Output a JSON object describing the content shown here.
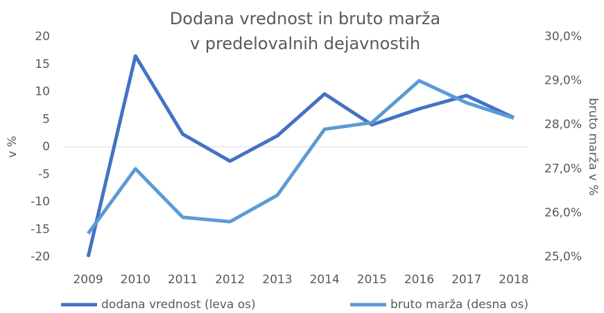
{
  "chart_data": {
    "type": "line",
    "title": "Dodana vrednost in bruto marža v predelovalnih dejavnostih",
    "y_label": "v %",
    "y2_label": "bruto marža v %",
    "categories": [
      "2009",
      "2010",
      "2011",
      "2012",
      "2013",
      "2014",
      "2015",
      "2016",
      "2017",
      "2018"
    ],
    "series": [
      {
        "name": "dodana vrednost (leva os)",
        "color": "#4472c4",
        "values": [
          -20,
          16.5,
          2.3,
          -2.6,
          2.0,
          9.6,
          4.0,
          6.9,
          9.3,
          5.3
        ]
      },
      {
        "name": "bruto marža (desna os)",
        "color": "#5b9bd5",
        "axis": "y2",
        "values": [
          25.53,
          27.0,
          25.9,
          25.8,
          26.4,
          27.9,
          28.05,
          29.0,
          28.5,
          28.15
        ]
      }
    ],
    "ylim": [
      -20,
      20
    ],
    "yticks": [
      -20,
      -15,
      -10,
      -5,
      0,
      5,
      10,
      15,
      20
    ],
    "y2lim": [
      25,
      30
    ],
    "y2ticks": [
      {
        "value": 25,
        "label": "25,0%"
      },
      {
        "value": 26,
        "label": "26,0%"
      },
      {
        "value": 27,
        "label": "27,0%"
      },
      {
        "value": 28,
        "label": "28,0%"
      },
      {
        "value": 29,
        "label": "29,0%"
      },
      {
        "value": 30,
        "label": "30,0%"
      }
    ],
    "legend": "bottom"
  }
}
